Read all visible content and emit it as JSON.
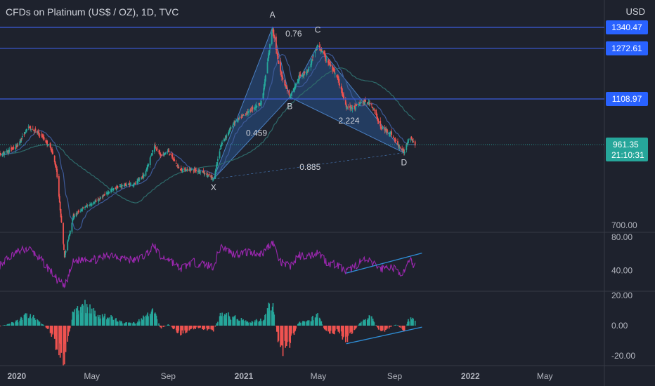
{
  "header": {
    "title": "CFDs on Platinum (US$ / OZ), 1D, TVC",
    "currency": "USD"
  },
  "colors": {
    "background": "#1e222d",
    "up_candle": "#26a69a",
    "down_candle": "#ef5350",
    "hline": "#3b5bdb",
    "label_bg": "#2962ff",
    "ma1": "#3d5a99",
    "ma2": "#2e6b6b",
    "harmonic_fill": "#2a5d9f",
    "rsi": "#9c27b0",
    "trendline": "#2f8fd8",
    "axis_text": "#b2b5be",
    "last_price_bg": "#26a69a"
  },
  "chart_data": [
    {
      "type": "candlestick",
      "title": "CFDs on Platinum (US$ / OZ), 1D, TVC",
      "x_tick_labels": [
        "2020",
        "May",
        "Sep",
        "2021",
        "May",
        "Sep",
        "2022",
        "May"
      ],
      "y_tick_labels": [
        "700.00"
      ],
      "ylim": [
        680,
        1420
      ],
      "horizontal_levels": [
        {
          "label": "1340.47",
          "value": 1340.47
        },
        {
          "label": "1272.61",
          "value": 1272.61
        },
        {
          "label": "1108.97",
          "value": 1108.97
        }
      ],
      "last_price": {
        "label": "961.35",
        "value": 961.35,
        "countdown": "21:10:31"
      },
      "harmonic_pattern": {
        "points": [
          {
            "label": "X",
            "date": "2020-11-13",
            "value": 850
          },
          {
            "label": "A",
            "date": "2021-02-16",
            "value": 1340
          },
          {
            "label": "B",
            "date": "2021-03-16",
            "value": 1115
          },
          {
            "label": "C",
            "date": "2021-04-30",
            "value": 1283
          },
          {
            "label": "D",
            "date": "2021-09-16",
            "value": 935
          }
        ],
        "ratios": [
          "0.76",
          "0.459",
          "2.224",
          "0.885"
        ]
      },
      "price_path": [
        [
          "2019-11-01",
          935
        ],
        [
          "2019-12-01",
          925
        ],
        [
          "2020-01-01",
          955
        ],
        [
          "2020-01-20",
          1020
        ],
        [
          "2020-02-10",
          990
        ],
        [
          "2020-02-26",
          945
        ],
        [
          "2020-03-05",
          880
        ],
        [
          "2020-03-18",
          600
        ],
        [
          "2020-04-01",
          730
        ],
        [
          "2020-04-20",
          760
        ],
        [
          "2020-05-10",
          780
        ],
        [
          "2020-06-01",
          815
        ],
        [
          "2020-06-20",
          830
        ],
        [
          "2020-07-10",
          835
        ],
        [
          "2020-07-25",
          865
        ],
        [
          "2020-08-10",
          960
        ],
        [
          "2020-08-20",
          925
        ],
        [
          "2020-09-01",
          940
        ],
        [
          "2020-09-20",
          880
        ],
        [
          "2020-10-10",
          880
        ],
        [
          "2020-10-25",
          875
        ],
        [
          "2020-11-13",
          850
        ],
        [
          "2020-11-25",
          960
        ],
        [
          "2020-12-15",
          1030
        ],
        [
          "2021-01-10",
          1070
        ],
        [
          "2021-01-30",
          1100
        ],
        [
          "2021-02-16",
          1340
        ],
        [
          "2021-02-28",
          1200
        ],
        [
          "2021-03-16",
          1115
        ],
        [
          "2021-03-31",
          1180
        ],
        [
          "2021-04-15",
          1205
        ],
        [
          "2021-04-30",
          1283
        ],
        [
          "2021-05-15",
          1235
        ],
        [
          "2021-06-01",
          1175
        ],
        [
          "2021-06-15",
          1085
        ],
        [
          "2021-06-28",
          1080
        ],
        [
          "2021-07-10",
          1100
        ],
        [
          "2021-07-25",
          1095
        ],
        [
          "2021-08-10",
          1015
        ],
        [
          "2021-08-25",
          1000
        ],
        [
          "2021-09-05",
          965
        ],
        [
          "2021-09-16",
          935
        ],
        [
          "2021-09-25",
          990
        ],
        [
          "2021-10-04",
          961.35
        ]
      ]
    },
    {
      "type": "line",
      "indicator": "RSI",
      "y_tick_labels": [
        "80.00",
        "40.00"
      ],
      "ylim": [
        15,
        85
      ],
      "values": [
        [
          "2019-11-01",
          48
        ],
        [
          "2019-12-01",
          45
        ],
        [
          "2020-01-01",
          62
        ],
        [
          "2020-01-20",
          67
        ],
        [
          "2020-02-10",
          52
        ],
        [
          "2020-02-26",
          38
        ],
        [
          "2020-03-05",
          30
        ],
        [
          "2020-03-18",
          20
        ],
        [
          "2020-04-01",
          50
        ],
        [
          "2020-04-20",
          55
        ],
        [
          "2020-05-10",
          53
        ],
        [
          "2020-06-01",
          60
        ],
        [
          "2020-06-20",
          55
        ],
        [
          "2020-07-10",
          52
        ],
        [
          "2020-07-25",
          58
        ],
        [
          "2020-08-10",
          70
        ],
        [
          "2020-08-20",
          55
        ],
        [
          "2020-09-01",
          55
        ],
        [
          "2020-09-20",
          42
        ],
        [
          "2020-10-10",
          50
        ],
        [
          "2020-10-25",
          48
        ],
        [
          "2020-11-13",
          45
        ],
        [
          "2020-11-25",
          70
        ],
        [
          "2020-12-15",
          60
        ],
        [
          "2021-01-10",
          62
        ],
        [
          "2021-01-30",
          60
        ],
        [
          "2021-02-16",
          75
        ],
        [
          "2021-02-28",
          50
        ],
        [
          "2021-03-16",
          45
        ],
        [
          "2021-03-31",
          58
        ],
        [
          "2021-04-15",
          57
        ],
        [
          "2021-04-30",
          63
        ],
        [
          "2021-05-15",
          50
        ],
        [
          "2021-06-01",
          47
        ],
        [
          "2021-06-15",
          38
        ],
        [
          "2021-06-28",
          45
        ],
        [
          "2021-07-10",
          52
        ],
        [
          "2021-07-25",
          50
        ],
        [
          "2021-08-10",
          42
        ],
        [
          "2021-08-25",
          45
        ],
        [
          "2021-09-05",
          40
        ],
        [
          "2021-09-16",
          37
        ],
        [
          "2021-09-25",
          52
        ],
        [
          "2021-10-04",
          46
        ]
      ],
      "trendline": [
        [
          "2021-06-15",
          37
        ],
        [
          "2021-10-15",
          61
        ]
      ]
    },
    {
      "type": "bar",
      "indicator": "histogram",
      "y_tick_labels": [
        "20.00",
        "0.00",
        "-20.00"
      ],
      "ylim": [
        -24,
        24
      ],
      "values": [
        [
          "2019-11-01",
          -1
        ],
        [
          "2019-12-01",
          -1
        ],
        [
          "2020-01-01",
          3
        ],
        [
          "2020-01-20",
          8
        ],
        [
          "2020-02-10",
          2
        ],
        [
          "2020-02-26",
          -6
        ],
        [
          "2020-03-05",
          -14
        ],
        [
          "2020-03-18",
          -23
        ],
        [
          "2020-04-01",
          10
        ],
        [
          "2020-04-20",
          14
        ],
        [
          "2020-05-10",
          8
        ],
        [
          "2020-06-01",
          6
        ],
        [
          "2020-06-20",
          2
        ],
        [
          "2020-07-10",
          2
        ],
        [
          "2020-07-25",
          6
        ],
        [
          "2020-08-10",
          10
        ],
        [
          "2020-08-20",
          -2
        ],
        [
          "2020-09-01",
          1
        ],
        [
          "2020-09-20",
          -6
        ],
        [
          "2020-10-10",
          -2
        ],
        [
          "2020-10-25",
          -2
        ],
        [
          "2020-11-13",
          -4
        ],
        [
          "2020-11-25",
          9
        ],
        [
          "2020-12-15",
          6
        ],
        [
          "2021-01-10",
          3
        ],
        [
          "2021-01-30",
          4
        ],
        [
          "2021-02-16",
          17
        ],
        [
          "2021-02-28",
          -18
        ],
        [
          "2021-03-16",
          -12
        ],
        [
          "2021-03-31",
          3
        ],
        [
          "2021-04-15",
          3
        ],
        [
          "2021-04-30",
          8
        ],
        [
          "2021-05-15",
          -6
        ],
        [
          "2021-06-01",
          -4
        ],
        [
          "2021-06-15",
          -10
        ],
        [
          "2021-06-28",
          -3
        ],
        [
          "2021-07-10",
          3
        ],
        [
          "2021-07-25",
          7
        ],
        [
          "2021-08-10",
          -6
        ],
        [
          "2021-08-25",
          -1
        ],
        [
          "2021-09-05",
          1
        ],
        [
          "2021-09-16",
          -5
        ],
        [
          "2021-09-25",
          6
        ],
        [
          "2021-10-04",
          3
        ]
      ],
      "trendline": [
        [
          "2021-06-15",
          -12
        ],
        [
          "2021-10-15",
          -1
        ]
      ]
    }
  ]
}
